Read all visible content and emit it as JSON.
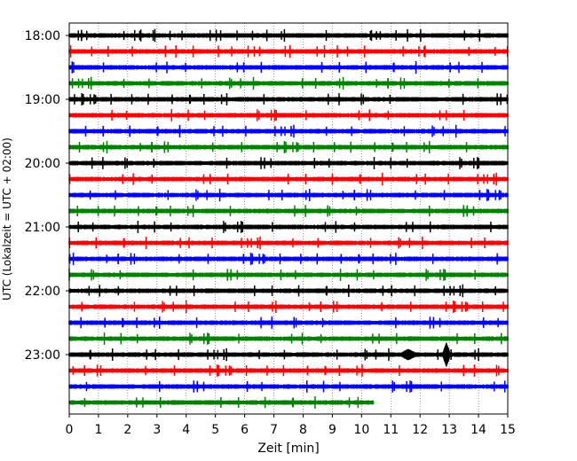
{
  "chart_data": {
    "type": "line",
    "title": "",
    "xlabel": "Zeit  [min]",
    "ylabel": "UTC (Lokalzeit = UTC + 02:00)",
    "xlim": [
      0,
      15
    ],
    "x_ticks": [
      0,
      1,
      2,
      3,
      4,
      5,
      6,
      7,
      8,
      9,
      10,
      11,
      12,
      13,
      14,
      15
    ],
    "x_tick_labels": [
      "0",
      "1",
      "2",
      "3",
      "4",
      "5",
      "6",
      "7",
      "8",
      "9",
      "10",
      "11",
      "12",
      "13",
      "14",
      "15"
    ],
    "y_tick_labels": [
      "18:00",
      "19:00",
      "20:00",
      "21:00",
      "22:00",
      "23:00"
    ],
    "grid": "vertical dotted lines at each minute",
    "trace_interval_min": 15,
    "trace_start_times": [
      "18:00",
      "18:15",
      "18:30",
      "18:45",
      "19:00",
      "19:15",
      "19:30",
      "19:45",
      "20:00",
      "20:15",
      "20:30",
      "20:45",
      "21:00",
      "21:15",
      "21:30",
      "21:45",
      "22:00",
      "22:15",
      "22:30",
      "22:45",
      "23:00",
      "23:15",
      "23:30",
      "23:45"
    ],
    "trace_colors": [
      "#000000",
      "#ff0000",
      "#0000ff",
      "#008000"
    ],
    "last_trace_end_min": 10.4,
    "notable_events": [
      {
        "trace_start": "23:00",
        "x_min": 11.6,
        "note": "burst"
      },
      {
        "trace_start": "23:00",
        "x_min": 12.9,
        "note": "large spike"
      }
    ]
  }
}
